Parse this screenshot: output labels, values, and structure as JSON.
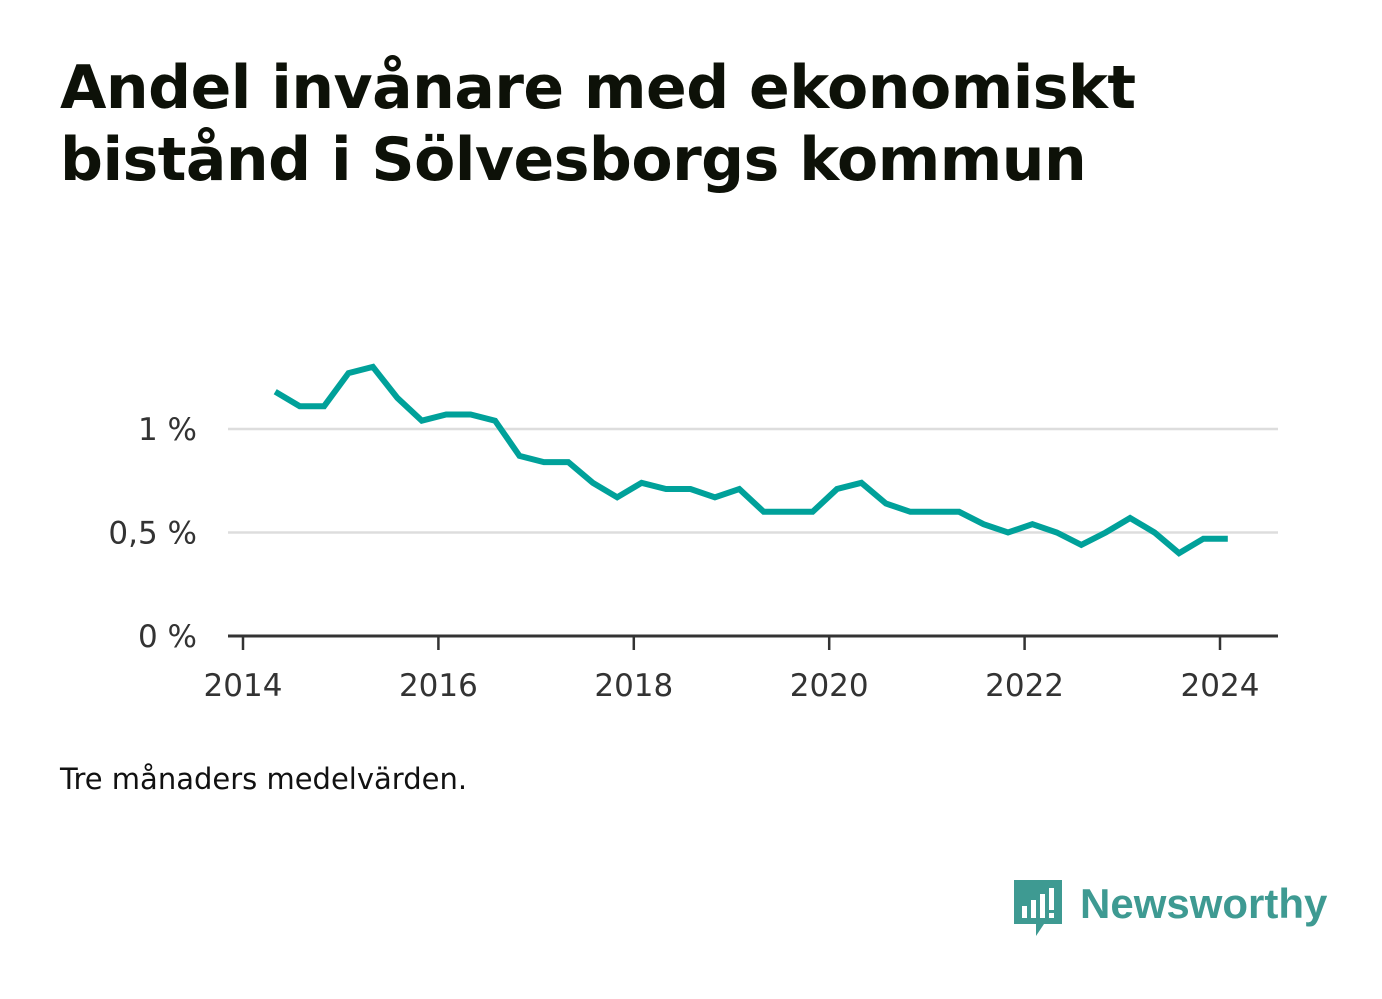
{
  "title": "Andel invånare med ekonomiskt bistånd i Sölvesborgs kommun",
  "caption": "Tre månaders medelvärden.",
  "brand": {
    "name": "Newsworthy",
    "icon": "newsworthy-logo-icon",
    "color": "#3e9a92"
  },
  "chart_data": {
    "type": "line",
    "title": "Andel invånare med ekonomiskt bistånd i Sölvesborgs kommun",
    "xlabel": "",
    "ylabel": "",
    "x_ticks": [
      "2014",
      "2016",
      "2018",
      "2020",
      "2022",
      "2024"
    ],
    "y_ticks": [
      {
        "value": 0,
        "label": "0 %"
      },
      {
        "value": 0.5,
        "label": "0,5 %"
      },
      {
        "value": 1,
        "label": "1 %"
      }
    ],
    "xlim": [
      2014,
      2024.6
    ],
    "ylim": [
      0,
      1.36
    ],
    "grid": true,
    "line_color": "#00a19a",
    "series": [
      {
        "name": "",
        "x": [
          2014.33,
          2014.58,
          2014.83,
          2015.08,
          2015.33,
          2015.58,
          2015.83,
          2016.08,
          2016.33,
          2016.58,
          2016.83,
          2017.08,
          2017.33,
          2017.58,
          2017.83,
          2018.08,
          2018.33,
          2018.58,
          2018.83,
          2019.08,
          2019.33,
          2019.58,
          2019.83,
          2020.08,
          2020.33,
          2020.58,
          2020.83,
          2021.08,
          2021.33,
          2021.58,
          2021.83,
          2022.08,
          2022.33,
          2022.58,
          2022.83,
          2023.08,
          2023.33,
          2023.58,
          2023.83,
          2024.08
        ],
        "values": [
          1.18,
          1.11,
          1.11,
          1.27,
          1.3,
          1.15,
          1.04,
          1.07,
          1.07,
          1.04,
          0.87,
          0.84,
          0.84,
          0.74,
          0.67,
          0.74,
          0.71,
          0.71,
          0.67,
          0.71,
          0.6,
          0.6,
          0.6,
          0.71,
          0.74,
          0.64,
          0.6,
          0.6,
          0.6,
          0.54,
          0.5,
          0.54,
          0.5,
          0.44,
          0.5,
          0.57,
          0.5,
          0.4,
          0.47,
          0.47
        ]
      }
    ]
  }
}
